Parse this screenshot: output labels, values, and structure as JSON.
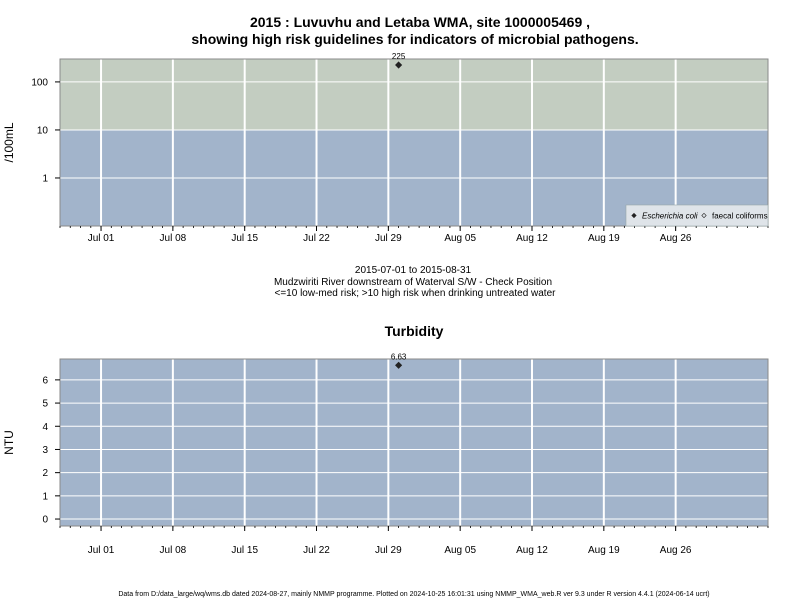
{
  "colors": {
    "high_risk_band": "#c3cdc1",
    "low_risk_band": "#a2b4cb",
    "grid": "#ffffff",
    "point": "#222222",
    "frame": "#8a8a8a"
  },
  "chart_data": [
    {
      "type": "scatter",
      "title_line1": "2015 : Luvuvhu and Letaba WMA, site 1000005469 ,",
      "title_line2": "showing high risk guidelines for indicators of microbial pathogens.",
      "ylabel": "/100mL",
      "y_scale": "log",
      "ylim": [
        0.1,
        300
      ],
      "yticks": [
        1,
        10,
        100
      ],
      "ytick_labels": [
        "1",
        "10",
        "100"
      ],
      "xlim": [
        "2015-06-27",
        "2015-09-04"
      ],
      "xticks": [
        "2015-07-01",
        "2015-07-08",
        "2015-07-15",
        "2015-07-22",
        "2015-07-29",
        "2015-08-05",
        "2015-08-12",
        "2015-08-19",
        "2015-08-26"
      ],
      "xtick_labels": [
        "Jul 01",
        "Jul 08",
        "Jul 15",
        "Jul 22",
        "Jul 29",
        "Aug 05",
        "Aug 12",
        "Aug 19",
        "Aug 26"
      ],
      "guideline": 10,
      "bands": [
        {
          "from": 0.1,
          "to": 10,
          "color": "low_risk_band"
        },
        {
          "from": 10,
          "to": 300,
          "color": "high_risk_band"
        }
      ],
      "series": [
        {
          "name": "Escherichia coli",
          "marker": "filled-diamond",
          "points": [
            {
              "x": "2015-07-30",
              "y": 225,
              "label": "225"
            }
          ]
        },
        {
          "name": "faecal coliforms",
          "marker": "open-diamond",
          "points": []
        }
      ],
      "legend_position": "bottom-right",
      "grid": true
    },
    {
      "type": "scatter",
      "title": "Turbidity",
      "ylabel": "NTU",
      "y_scale": "linear",
      "ylim": [
        -0.3,
        6.9
      ],
      "yticks": [
        0,
        1,
        2,
        3,
        4,
        5,
        6
      ],
      "ytick_labels": [
        "0",
        "1",
        "2",
        "3",
        "4",
        "5",
        "6"
      ],
      "xlim": [
        "2015-06-27",
        "2015-09-04"
      ],
      "xticks": [
        "2015-07-01",
        "2015-07-08",
        "2015-07-15",
        "2015-07-22",
        "2015-07-29",
        "2015-08-05",
        "2015-08-12",
        "2015-08-19",
        "2015-08-26"
      ],
      "xtick_labels": [
        "Jul 01",
        "Jul 08",
        "Jul 15",
        "Jul 22",
        "Jul 29",
        "Aug 05",
        "Aug 12",
        "Aug 19",
        "Aug 26"
      ],
      "series": [
        {
          "marker": "filled-diamond",
          "points": [
            {
              "x": "2015-07-30",
              "y": 6.63,
              "label": "6.63"
            }
          ]
        }
      ],
      "grid": true
    }
  ],
  "subtitle": {
    "line1": "2015-07-01 to 2015-08-31",
    "line2": "Mudzwiriti River downstream of Waterval S/W - Check Position",
    "line3": "<=10 low-med risk; >10 high risk when drinking untreated water"
  },
  "footer": "Data from D:/data_large/wq/wms.db dated 2024-08-27, mainly NMMP programme. Plotted on 2024-10-25 16:01:31 using NMMP_WMA_web.R ver 9.3 under R version 4.4.1 (2024-06-14 ucrt)"
}
